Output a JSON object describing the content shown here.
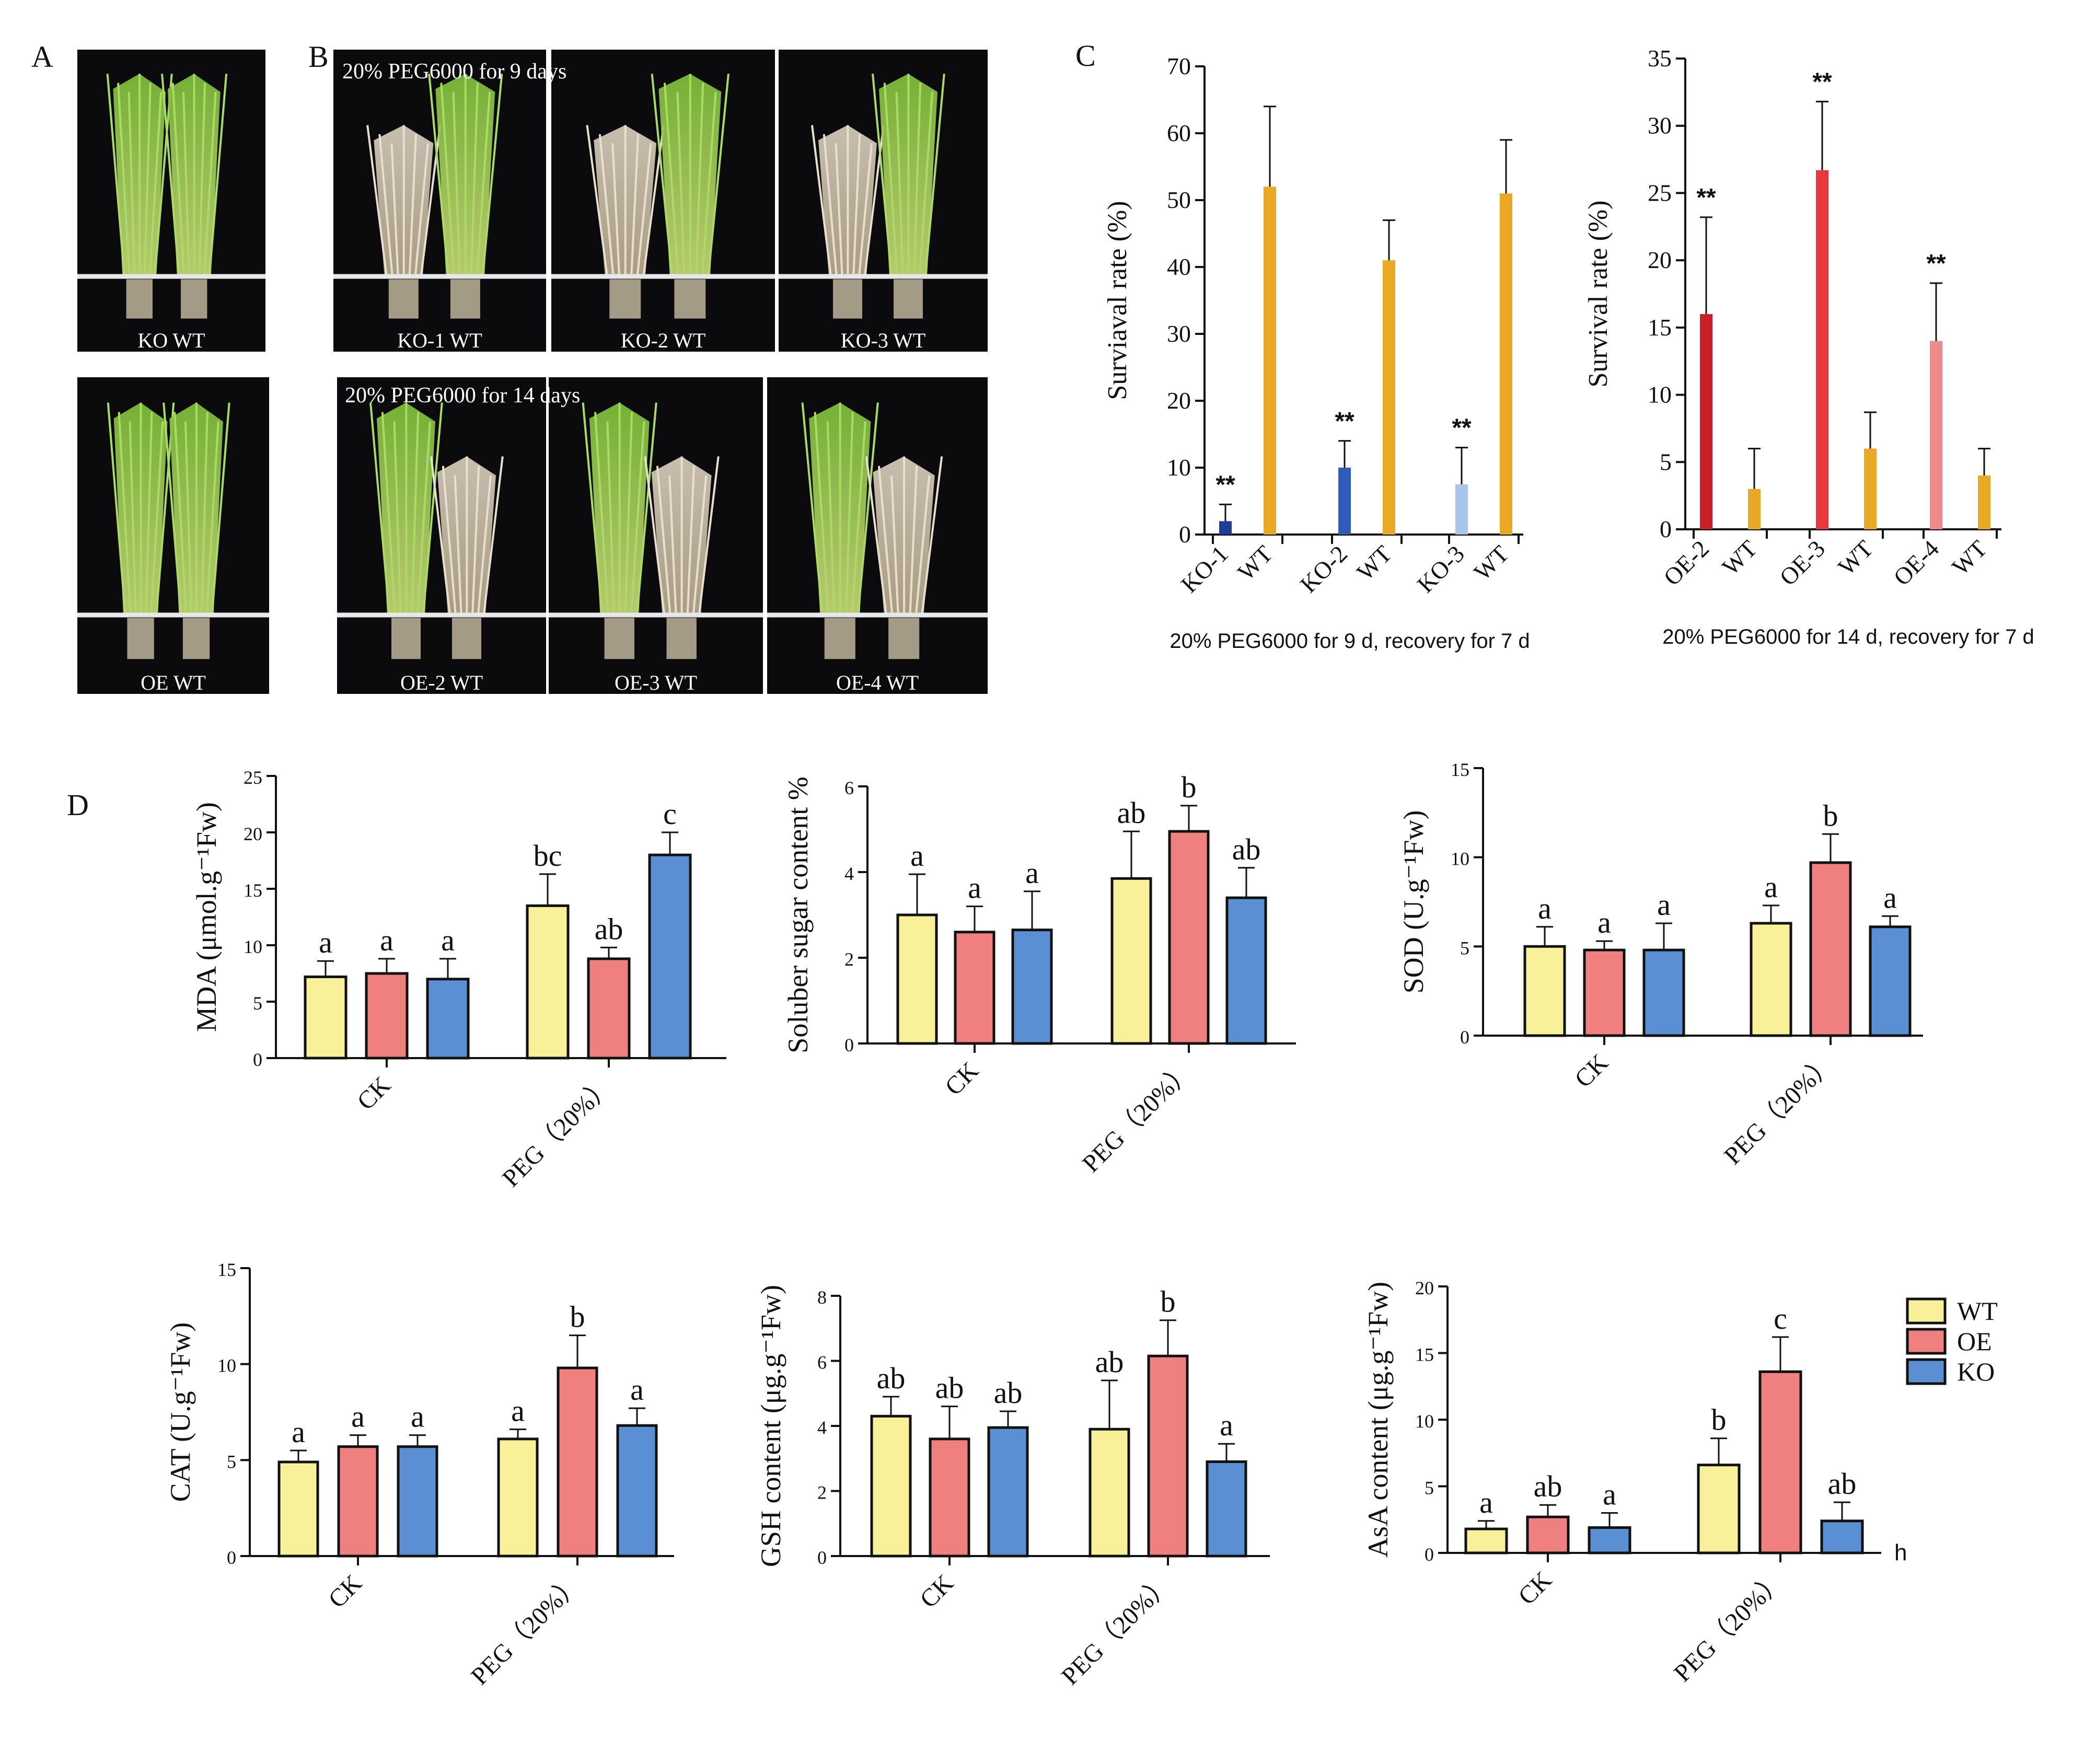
{
  "labels": {
    "A": "A",
    "B": "B",
    "C": "C",
    "D": "D"
  },
  "photos": {
    "A": [
      {
        "caption": "KO WT"
      },
      {
        "caption": "OE WT"
      }
    ],
    "B_top_title": "20% PEG6000 for 9 days",
    "B_bottom_title": "20% PEG6000 for 14 days",
    "B_top": [
      {
        "caption": "KO-1 WT"
      },
      {
        "caption": "KO-2 WT"
      },
      {
        "caption": "KO-3 WT"
      }
    ],
    "B_bottom": [
      {
        "caption": "OE-2 WT"
      },
      {
        "caption": "OE-3 WT"
      },
      {
        "caption": "OE-4 WT"
      }
    ]
  },
  "colors": {
    "wt": "#f9f19a",
    "oe": "#f07f7f",
    "ko": "#5a8fd4",
    "wt_c": "#eaa924",
    "ko1": "#1f3c96",
    "ko2": "#2f5cb8",
    "ko3": "#a9c6ea",
    "oe2": "#c91f28",
    "oe3": "#e8383e",
    "oe4": "#ee8a8a"
  },
  "legend": [
    "WT",
    "OE",
    "KO"
  ],
  "stray_text": "h",
  "chart_data": [
    {
      "id": "C-left",
      "type": "bar",
      "title": "",
      "xlabel": "20% PEG6000 for 9 d, recovery for 7 d",
      "ylabel": "Surviaval rate (%)",
      "ylim": [
        0,
        70
      ],
      "yticks": [
        "0",
        "10",
        "20",
        "30",
        "40",
        "50",
        "60",
        "70"
      ],
      "groups": [
        {
          "labels": [
            "KO-1",
            "WT"
          ],
          "values": [
            2,
            52
          ],
          "errors": [
            2.5,
            12
          ],
          "stars": [
            "**",
            ""
          ]
        },
        {
          "labels": [
            "KO-2",
            "WT"
          ],
          "values": [
            10,
            41
          ],
          "errors": [
            4,
            6
          ],
          "stars": [
            "**",
            ""
          ]
        },
        {
          "labels": [
            "KO-3",
            "WT"
          ],
          "values": [
            7.5,
            51
          ],
          "errors": [
            5.5,
            8
          ],
          "stars": [
            "**",
            ""
          ]
        }
      ]
    },
    {
      "id": "C-right",
      "type": "bar",
      "title": "",
      "xlabel": "20% PEG6000 for 14 d, recovery for 7 d",
      "ylabel": "Survival rate (%)",
      "ylim": [
        0,
        35
      ],
      "yticks": [
        "0",
        "5",
        "10",
        "15",
        "20",
        "25",
        "30",
        "35"
      ],
      "groups": [
        {
          "labels": [
            "OE-2",
            "WT"
          ],
          "values": [
            16,
            3
          ],
          "errors": [
            7.2,
            3
          ],
          "stars": [
            "**",
            ""
          ]
        },
        {
          "labels": [
            "OE-3",
            "WT"
          ],
          "values": [
            26.7,
            6
          ],
          "errors": [
            5.1,
            2.7
          ],
          "stars": [
            "**",
            ""
          ]
        },
        {
          "labels": [
            "OE-4",
            "WT"
          ],
          "values": [
            14,
            4
          ],
          "errors": [
            4.3,
            2
          ],
          "stars": [
            "**",
            ""
          ]
        }
      ]
    },
    {
      "id": "D-MDA",
      "type": "bar",
      "ylabel": "MDA (μmol.g⁻¹Fw)",
      "ylim": [
        0,
        25
      ],
      "yticks": [
        "0",
        "5",
        "10",
        "15",
        "20",
        "25"
      ],
      "categories": [
        "CK",
        "PEG（20%）"
      ],
      "series": [
        {
          "name": "WT",
          "values": [
            7.2,
            13.5
          ],
          "errors": [
            1.4,
            2.8
          ],
          "letters": [
            "a",
            "bc"
          ]
        },
        {
          "name": "OE",
          "values": [
            7.5,
            8.8
          ],
          "errors": [
            1.3,
            1.0
          ],
          "letters": [
            "a",
            "ab"
          ]
        },
        {
          "name": "KO",
          "values": [
            7.0,
            18.0
          ],
          "errors": [
            1.8,
            2.0
          ],
          "letters": [
            "a",
            "c"
          ]
        }
      ]
    },
    {
      "id": "D-Sugar",
      "type": "bar",
      "ylabel": "Soluber sugar content %",
      "ylim": [
        0,
        6
      ],
      "yticks": [
        "0",
        "2",
        "4",
        "6"
      ],
      "categories": [
        "CK",
        "PEG（20%）"
      ],
      "series": [
        {
          "name": "WT",
          "values": [
            3.0,
            3.85
          ],
          "errors": [
            0.95,
            1.1
          ],
          "letters": [
            "a",
            "ab"
          ]
        },
        {
          "name": "OE",
          "values": [
            2.6,
            4.95
          ],
          "errors": [
            0.6,
            0.6
          ],
          "letters": [
            "a",
            "b"
          ]
        },
        {
          "name": "KO",
          "values": [
            2.65,
            3.4
          ],
          "errors": [
            0.9,
            0.7
          ],
          "letters": [
            "a",
            "ab"
          ]
        }
      ]
    },
    {
      "id": "D-SOD",
      "type": "bar",
      "ylabel": "SOD (U.g⁻¹Fw)",
      "ylim": [
        0,
        15
      ],
      "yticks": [
        "0",
        "5",
        "10",
        "15"
      ],
      "categories": [
        "CK",
        "PEG（20%）"
      ],
      "series": [
        {
          "name": "WT",
          "values": [
            5.0,
            6.3
          ],
          "errors": [
            1.1,
            1.0
          ],
          "letters": [
            "a",
            "a"
          ]
        },
        {
          "name": "OE",
          "values": [
            4.8,
            9.7
          ],
          "errors": [
            0.5,
            1.6
          ],
          "letters": [
            "a",
            "b"
          ]
        },
        {
          "name": "KO",
          "values": [
            4.8,
            6.1
          ],
          "errors": [
            1.5,
            0.6
          ],
          "letters": [
            "a",
            "a"
          ]
        }
      ]
    },
    {
      "id": "D-CAT",
      "type": "bar",
      "ylabel": "CAT (U.g⁻¹Fw)",
      "ylim": [
        0,
        15
      ],
      "yticks": [
        "0",
        "5",
        "10",
        "15"
      ],
      "categories": [
        "CK",
        "PEG（20%）"
      ],
      "series": [
        {
          "name": "WT",
          "values": [
            4.9,
            6.1
          ],
          "errors": [
            0.6,
            0.5
          ],
          "letters": [
            "a",
            "a"
          ]
        },
        {
          "name": "OE",
          "values": [
            5.7,
            9.8
          ],
          "errors": [
            0.6,
            1.7
          ],
          "letters": [
            "a",
            "b"
          ]
        },
        {
          "name": "KO",
          "values": [
            5.7,
            6.8
          ],
          "errors": [
            0.6,
            0.9
          ],
          "letters": [
            "a",
            "a"
          ]
        }
      ]
    },
    {
      "id": "D-GSH",
      "type": "bar",
      "ylabel": "GSH content  (μg.g⁻¹Fw)",
      "ylim": [
        0,
        8
      ],
      "yticks": [
        "0",
        "2",
        "4",
        "6",
        "8"
      ],
      "categories": [
        "CK",
        "PEG（20%）"
      ],
      "series": [
        {
          "name": "WT",
          "values": [
            4.3,
            3.9
          ],
          "errors": [
            0.6,
            1.5
          ],
          "letters": [
            "ab",
            "ab"
          ]
        },
        {
          "name": "OE",
          "values": [
            3.6,
            6.15
          ],
          "errors": [
            1.0,
            1.1
          ],
          "letters": [
            "ab",
            "b"
          ]
        },
        {
          "name": "KO",
          "values": [
            3.95,
            2.9
          ],
          "errors": [
            0.5,
            0.55
          ],
          "letters": [
            "ab",
            "a"
          ]
        }
      ]
    },
    {
      "id": "D-AsA",
      "type": "bar",
      "ylabel": "AsA content (μg.g⁻¹Fw)",
      "ylim": [
        0,
        20
      ],
      "yticks": [
        "0",
        "5",
        "10",
        "15",
        "20"
      ],
      "categories": [
        "CK",
        "PEG（20%）"
      ],
      "series": [
        {
          "name": "WT",
          "values": [
            1.8,
            6.6
          ],
          "errors": [
            0.6,
            2.0
          ],
          "letters": [
            "a",
            "b"
          ]
        },
        {
          "name": "OE",
          "values": [
            2.7,
            13.6
          ],
          "errors": [
            0.9,
            2.6
          ],
          "letters": [
            "ab",
            "c"
          ]
        },
        {
          "name": "KO",
          "values": [
            1.9,
            2.4
          ],
          "errors": [
            1.1,
            1.4
          ],
          "letters": [
            "a",
            "ab"
          ]
        }
      ]
    }
  ]
}
